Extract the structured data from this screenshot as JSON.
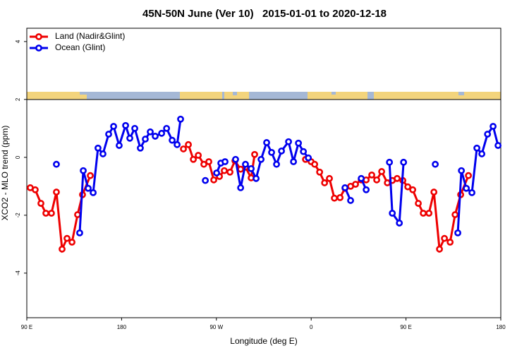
{
  "chart_data": {
    "type": "line",
    "title": "45N-50N June (Ver 10)   2015-01-01 to 2020-12-18",
    "x_label": "Longitude (deg E)",
    "y_label": "XCO2 - MLO trend (ppm)",
    "xlim": [
      90,
      540
    ],
    "ylim": [
      -5.54,
      4.46
    ],
    "xticks": [
      {
        "value": 90,
        "label": "90 E"
      },
      {
        "value": 180,
        "label": "180"
      },
      {
        "value": 270,
        "label": "90 W"
      },
      {
        "value": 360,
        "label": "0"
      },
      {
        "value": 450,
        "label": "90 E"
      },
      {
        "value": 540,
        "label": "180"
      }
    ],
    "yticks": [
      4,
      2,
      0,
      -2,
      -4
    ],
    "legend": "topleft",
    "series": [
      {
        "name": "Land (Nadir&Glint)",
        "color": "#ee0000",
        "x": [
          93.3,
          98.0,
          103.4,
          108.1,
          113.4,
          118.1,
          123.5,
          128.2,
          132.9,
          138.2,
          142.9,
          150.3,
          null,
          238.7,
          243.4,
          248.1,
          252.8,
          258.1,
          262.8,
          267.5,
          272.9,
          277.5,
          282.9,
          287.6,
          293.0,
          297.6,
          303.0,
          306.3,
          null,
          354.6,
          359.9,
          363.3,
          368.0,
          372.7,
          377.3,
          382.0,
          387.4,
          392.1,
          397.4,
          402.1,
          407.5,
          412.2,
          417.5,
          422.2,
          426.9,
          432.3,
          437.0,
          441.6,
          447.0,
          451.7,
          456.4,
          461.7,
          466.4,
          471.8,
          476.5,
          481.8,
          486.5,
          491.9,
          496.6,
          501.9,
          509.3
        ],
        "values": [
          -1.05,
          -1.12,
          -1.59,
          -1.93,
          -1.93,
          -1.2,
          -3.17,
          -2.8,
          -2.93,
          -1.98,
          -1.29,
          -0.63,
          null,
          0.29,
          0.44,
          -0.07,
          0.07,
          -0.24,
          -0.15,
          -0.78,
          -0.66,
          -0.46,
          -0.51,
          -0.12,
          -0.41,
          -0.34,
          -0.71,
          0.1,
          null,
          -0.07,
          -0.15,
          -0.24,
          -0.51,
          -0.88,
          -0.73,
          -1.41,
          -1.39,
          -1.07,
          -1.0,
          -0.93,
          -0.78,
          -0.78,
          -0.61,
          -0.78,
          -0.49,
          -0.88,
          -0.8,
          -0.73,
          -0.8,
          -1.02,
          -1.12,
          -1.59,
          -1.93,
          -1.93,
          -1.2,
          -3.17,
          -2.8,
          -2.93,
          -1.98,
          -1.29,
          -0.63
        ]
      },
      {
        "name": "Ocean (Glint)",
        "color": "#0000ee",
        "x": [
          118.1,
          null,
          140.2,
          143.6,
          148.3,
          153.0,
          157.6,
          162.3,
          167.7,
          172.4,
          177.7,
          183.8,
          187.8,
          192.5,
          197.8,
          202.5,
          207.2,
          211.9,
          218.0,
          222.7,
          228.0,
          232.7,
          236.0,
          null,
          259.5,
          null,
          270.2,
          274.2,
          278.2,
          null,
          288.2,
          293.0,
          297.6,
          303.0,
          307.7,
          312.4,
          317.7,
          322.4,
          327.1,
          331.8,
          338.5,
          343.2,
          347.9,
          352.6,
          357.3,
          null,
          392.1,
          397.4,
          null,
          407.5,
          412.2,
          null,
          434.3,
          437.0,
          443.7,
          447.7,
          null,
          477.8,
          null,
          499.2,
          502.6,
          507.3,
          512.6,
          517.3,
          522.0,
          527.4,
          532.7,
          537.4
        ],
        "values": [
          -0.24,
          null,
          -2.61,
          -0.46,
          -1.07,
          -1.22,
          0.32,
          0.12,
          0.8,
          1.07,
          0.41,
          1.1,
          0.66,
          1.0,
          0.32,
          0.63,
          0.88,
          0.73,
          0.83,
          1.0,
          0.59,
          0.44,
          1.32,
          null,
          -0.8,
          null,
          -0.54,
          -0.2,
          -0.15,
          null,
          -0.07,
          -1.05,
          -0.24,
          -0.39,
          -0.73,
          -0.07,
          0.51,
          0.17,
          -0.24,
          0.22,
          0.54,
          -0.15,
          0.49,
          0.2,
          -0.02,
          null,
          -1.05,
          -1.49,
          null,
          -0.73,
          -1.12,
          null,
          -0.17,
          -1.93,
          -2.27,
          -0.17,
          null,
          -0.24,
          null,
          -2.61,
          -0.46,
          -1.07,
          -1.22,
          0.32,
          0.12,
          0.8,
          1.07,
          0.41
        ]
      }
    ]
  }
}
